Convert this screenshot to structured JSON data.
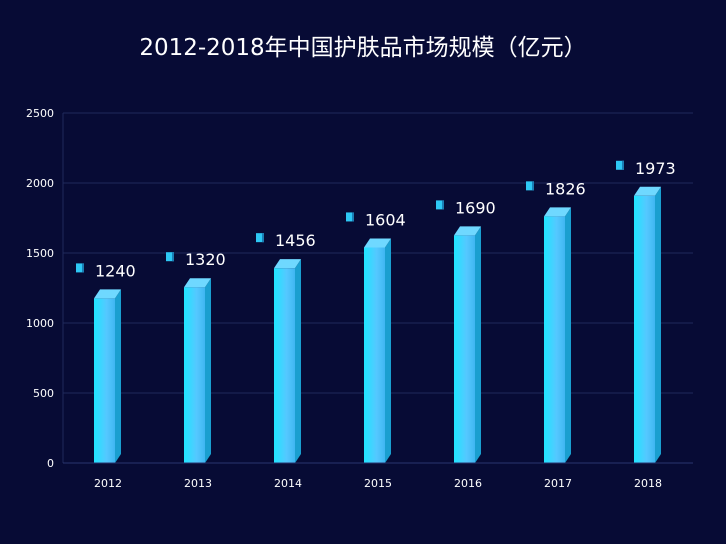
{
  "chart_data": {
    "type": "bar",
    "title": "2012-2018年中国护肤品市场规模（亿元）",
    "categories": [
      "2012",
      "2013",
      "2014",
      "2015",
      "2016",
      "2017",
      "2018"
    ],
    "values": [
      1240,
      1320,
      1456,
      1604,
      1690,
      1826,
      1973
    ],
    "ylim": [
      0,
      2500
    ],
    "yticks": [
      0,
      500,
      1000,
      1500,
      2000,
      2500
    ],
    "grid": true,
    "colors": {
      "background": "#070b35",
      "bar_front": "#33e1ff",
      "bar_side": "#1a9fd0",
      "bar_top": "#6fd8ff",
      "grid": "#1f2a5c",
      "text": "#ffffff"
    }
  }
}
